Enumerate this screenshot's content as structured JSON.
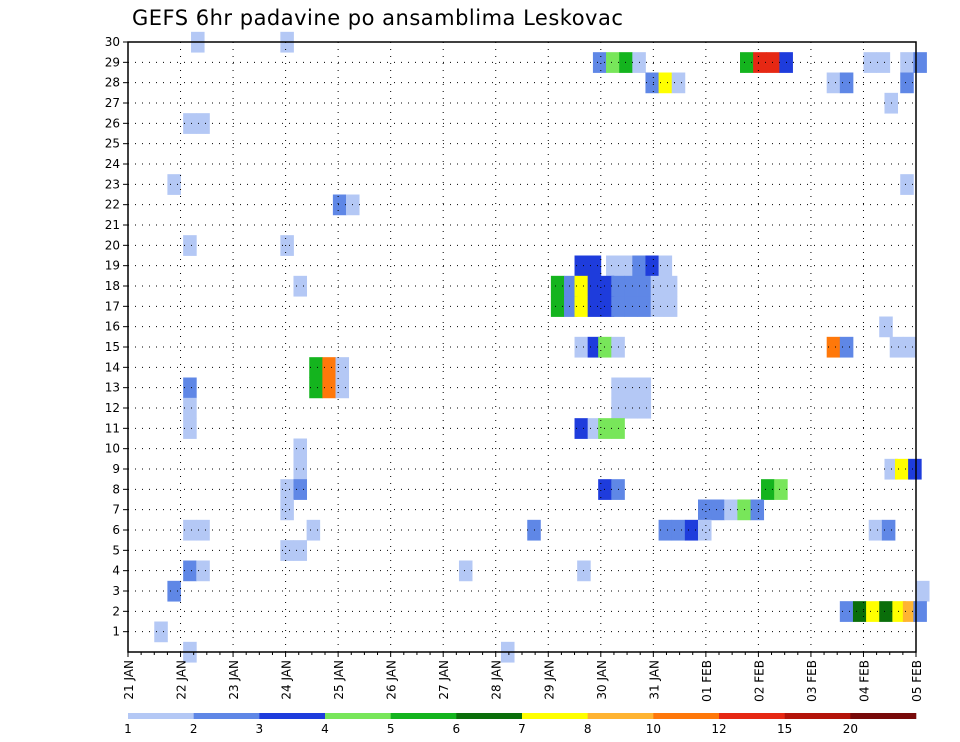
{
  "title": "GEFS 6hr padavine po ansamblima Leskovac",
  "chart_data": {
    "type": "heatmap",
    "title": "GEFS 6hr padavine po ansamblima Leskovac",
    "x_tick_labels": [
      "21 JAN",
      "22 JAN",
      "23 JAN",
      "24 JAN",
      "25 JAN",
      "26 JAN",
      "27 JAN",
      "28 JAN",
      "29 JAN",
      "30 JAN",
      "31 JAN",
      "01 FEB",
      "02 FEB",
      "03 FEB",
      "04 FEB",
      "05 FEB"
    ],
    "y_tick_labels": [
      "1",
      "2",
      "3",
      "4",
      "5",
      "6",
      "7",
      "8",
      "9",
      "10",
      "11",
      "12",
      "13",
      "14",
      "15",
      "16",
      "17",
      "18",
      "19",
      "20",
      "21",
      "22",
      "23",
      "24",
      "25",
      "26",
      "27",
      "28",
      "29",
      "30"
    ],
    "x_range_days": [
      0,
      15
    ],
    "y_range": [
      0,
      30
    ],
    "time_step_hours": 6,
    "grid": true,
    "colorbar": {
      "tick_labels": [
        "1",
        "2",
        "3",
        "4",
        "5",
        "6",
        "7",
        "8",
        "10",
        "12",
        "15",
        "20"
      ],
      "colors": [
        "#b4c8f5",
        "#5f87e6",
        "#1e3cdc",
        "#78e65a",
        "#14b41e",
        "#0a6e0a",
        "#ffff00",
        "#ffb432",
        "#ff780a",
        "#e62814",
        "#b4140a",
        "#780a0a"
      ]
    },
    "cells": [
      {
        "member": 30,
        "x": 1.2,
        "level": 1
      },
      {
        "member": 30,
        "x": 2.9,
        "level": 1
      },
      {
        "member": 29,
        "x": 8.85,
        "level": 2
      },
      {
        "member": 29,
        "x": 9.1,
        "level": 4
      },
      {
        "member": 29,
        "x": 9.35,
        "level": 5
      },
      {
        "member": 29,
        "x": 9.6,
        "level": 1
      },
      {
        "member": 29,
        "x": 11.65,
        "level": 5
      },
      {
        "member": 29,
        "x": 11.9,
        "level": 10
      },
      {
        "member": 29,
        "x": 12.15,
        "level": 10
      },
      {
        "member": 29,
        "x": 12.4,
        "level": 3
      },
      {
        "member": 29,
        "x": 14.0,
        "level": 1
      },
      {
        "member": 29,
        "x": 14.25,
        "level": 1
      },
      {
        "member": 29,
        "x": 14.7,
        "level": 1
      },
      {
        "member": 29,
        "x": 14.95,
        "level": 2
      },
      {
        "member": 28,
        "x": 9.85,
        "level": 2
      },
      {
        "member": 28,
        "x": 10.1,
        "level": 7
      },
      {
        "member": 28,
        "x": 10.35,
        "level": 1
      },
      {
        "member": 28,
        "x": 13.3,
        "level": 1
      },
      {
        "member": 28,
        "x": 13.55,
        "level": 2
      },
      {
        "member": 28,
        "x": 14.7,
        "level": 2
      },
      {
        "member": 27,
        "x": 14.4,
        "level": 1
      },
      {
        "member": 26,
        "x": 1.05,
        "level": 1
      },
      {
        "member": 26,
        "x": 1.3,
        "level": 1
      },
      {
        "member": 23,
        "x": 0.75,
        "level": 1
      },
      {
        "member": 23,
        "x": 14.7,
        "level": 1
      },
      {
        "member": 22,
        "x": 3.9,
        "level": 2
      },
      {
        "member": 22,
        "x": 4.15,
        "level": 1
      },
      {
        "member": 20,
        "x": 1.05,
        "level": 1
      },
      {
        "member": 20,
        "x": 2.9,
        "level": 1
      },
      {
        "member": 19,
        "x": 8.5,
        "level": 3
      },
      {
        "member": 19,
        "x": 8.75,
        "level": 3
      },
      {
        "member": 19,
        "x": 9.1,
        "level": 1
      },
      {
        "member": 19,
        "x": 9.35,
        "level": 1
      },
      {
        "member": 19,
        "x": 9.6,
        "level": 2
      },
      {
        "member": 19,
        "x": 9.85,
        "level": 3
      },
      {
        "member": 19,
        "x": 10.1,
        "level": 1
      },
      {
        "member": 18,
        "x": 3.15,
        "level": 1
      },
      {
        "member": 18,
        "x": 8.05,
        "level": 5
      },
      {
        "member": 18,
        "x": 8.3,
        "level": 2
      },
      {
        "member": 18,
        "x": 8.5,
        "level": 7
      },
      {
        "member": 18,
        "x": 8.75,
        "level": 3
      },
      {
        "member": 18,
        "x": 9.0,
        "level": 3
      },
      {
        "member": 18,
        "x": 9.2,
        "level": 2
      },
      {
        "member": 18,
        "x": 9.45,
        "level": 2
      },
      {
        "member": 18,
        "x": 9.7,
        "level": 2
      },
      {
        "member": 18,
        "x": 9.95,
        "level": 1
      },
      {
        "member": 18,
        "x": 10.2,
        "level": 1
      },
      {
        "member": 17,
        "x": 8.05,
        "level": 5
      },
      {
        "member": 17,
        "x": 8.3,
        "level": 2
      },
      {
        "member": 17,
        "x": 8.5,
        "level": 7
      },
      {
        "member": 17,
        "x": 8.75,
        "level": 3
      },
      {
        "member": 17,
        "x": 9.0,
        "level": 3
      },
      {
        "member": 17,
        "x": 9.2,
        "level": 2
      },
      {
        "member": 17,
        "x": 9.45,
        "level": 2
      },
      {
        "member": 17,
        "x": 9.7,
        "level": 2
      },
      {
        "member": 17,
        "x": 9.95,
        "level": 1
      },
      {
        "member": 17,
        "x": 10.2,
        "level": 1
      },
      {
        "member": 16,
        "x": 14.3,
        "level": 1
      },
      {
        "member": 15,
        "x": 8.5,
        "level": 1
      },
      {
        "member": 15,
        "x": 8.75,
        "level": 3
      },
      {
        "member": 15,
        "x": 8.95,
        "level": 4
      },
      {
        "member": 15,
        "x": 9.2,
        "level": 1
      },
      {
        "member": 15,
        "x": 13.3,
        "level": 9
      },
      {
        "member": 15,
        "x": 13.55,
        "level": 2
      },
      {
        "member": 15,
        "x": 14.5,
        "level": 1
      },
      {
        "member": 15,
        "x": 14.75,
        "level": 1
      },
      {
        "member": 14,
        "x": 3.45,
        "level": 5
      },
      {
        "member": 14,
        "x": 3.7,
        "level": 9
      },
      {
        "member": 14,
        "x": 3.95,
        "level": 1
      },
      {
        "member": 13,
        "x": 1.05,
        "level": 2
      },
      {
        "member": 13,
        "x": 3.45,
        "level": 5
      },
      {
        "member": 13,
        "x": 3.7,
        "level": 9
      },
      {
        "member": 13,
        "x": 3.95,
        "level": 1
      },
      {
        "member": 13,
        "x": 9.2,
        "level": 1
      },
      {
        "member": 13,
        "x": 9.45,
        "level": 1
      },
      {
        "member": 13,
        "x": 9.7,
        "level": 1
      },
      {
        "member": 12,
        "x": 1.05,
        "level": 1
      },
      {
        "member": 12,
        "x": 9.2,
        "level": 1
      },
      {
        "member": 12,
        "x": 9.45,
        "level": 1
      },
      {
        "member": 12,
        "x": 9.7,
        "level": 1
      },
      {
        "member": 11,
        "x": 1.05,
        "level": 1
      },
      {
        "member": 11,
        "x": 8.5,
        "level": 3
      },
      {
        "member": 11,
        "x": 8.75,
        "level": 1
      },
      {
        "member": 11,
        "x": 8.95,
        "level": 4
      },
      {
        "member": 11,
        "x": 9.2,
        "level": 4
      },
      {
        "member": 10,
        "x": 3.15,
        "level": 1
      },
      {
        "member": 9,
        "x": 3.15,
        "level": 1
      },
      {
        "member": 9,
        "x": 14.4,
        "level": 1
      },
      {
        "member": 9,
        "x": 14.6,
        "level": 7
      },
      {
        "member": 9,
        "x": 14.85,
        "level": 3
      },
      {
        "member": 8,
        "x": 2.9,
        "level": 1
      },
      {
        "member": 8,
        "x": 3.15,
        "level": 2
      },
      {
        "member": 8,
        "x": 8.95,
        "level": 3
      },
      {
        "member": 8,
        "x": 9.2,
        "level": 2
      },
      {
        "member": 8,
        "x": 12.05,
        "level": 5
      },
      {
        "member": 8,
        "x": 12.3,
        "level": 4
      },
      {
        "member": 7,
        "x": 2.9,
        "level": 1
      },
      {
        "member": 7,
        "x": 10.85,
        "level": 2
      },
      {
        "member": 7,
        "x": 11.1,
        "level": 2
      },
      {
        "member": 7,
        "x": 11.35,
        "level": 1
      },
      {
        "member": 7,
        "x": 11.6,
        "level": 4
      },
      {
        "member": 7,
        "x": 11.85,
        "level": 2
      },
      {
        "member": 6,
        "x": 1.05,
        "level": 1
      },
      {
        "member": 6,
        "x": 1.3,
        "level": 1
      },
      {
        "member": 6,
        "x": 3.4,
        "level": 1
      },
      {
        "member": 6,
        "x": 7.6,
        "level": 2
      },
      {
        "member": 6,
        "x": 10.1,
        "level": 2
      },
      {
        "member": 6,
        "x": 10.35,
        "level": 2
      },
      {
        "member": 6,
        "x": 10.6,
        "level": 3
      },
      {
        "member": 6,
        "x": 10.85,
        "level": 1
      },
      {
        "member": 6,
        "x": 14.1,
        "level": 1
      },
      {
        "member": 6,
        "x": 14.35,
        "level": 2
      },
      {
        "member": 5,
        "x": 2.9,
        "level": 1
      },
      {
        "member": 5,
        "x": 3.15,
        "level": 1
      },
      {
        "member": 4,
        "x": 1.05,
        "level": 2
      },
      {
        "member": 4,
        "x": 1.3,
        "level": 1
      },
      {
        "member": 4,
        "x": 6.3,
        "level": 1
      },
      {
        "member": 4,
        "x": 8.55,
        "level": 1
      },
      {
        "member": 3,
        "x": 0.75,
        "level": 2
      },
      {
        "member": 3,
        "x": 15.0,
        "level": 1
      },
      {
        "member": 2,
        "x": 13.55,
        "level": 2
      },
      {
        "member": 2,
        "x": 13.8,
        "level": 6
      },
      {
        "member": 2,
        "x": 14.05,
        "level": 7
      },
      {
        "member": 2,
        "x": 14.3,
        "level": 6
      },
      {
        "member": 2,
        "x": 14.55,
        "level": 7
      },
      {
        "member": 2,
        "x": 14.75,
        "level": 8
      },
      {
        "member": 2,
        "x": 14.95,
        "level": 2
      },
      {
        "member": 1,
        "x": 0.5,
        "level": 1
      },
      {
        "member": 0,
        "x": 1.05,
        "level": 1
      },
      {
        "member": 0,
        "x": 7.1,
        "level": 1
      }
    ]
  }
}
